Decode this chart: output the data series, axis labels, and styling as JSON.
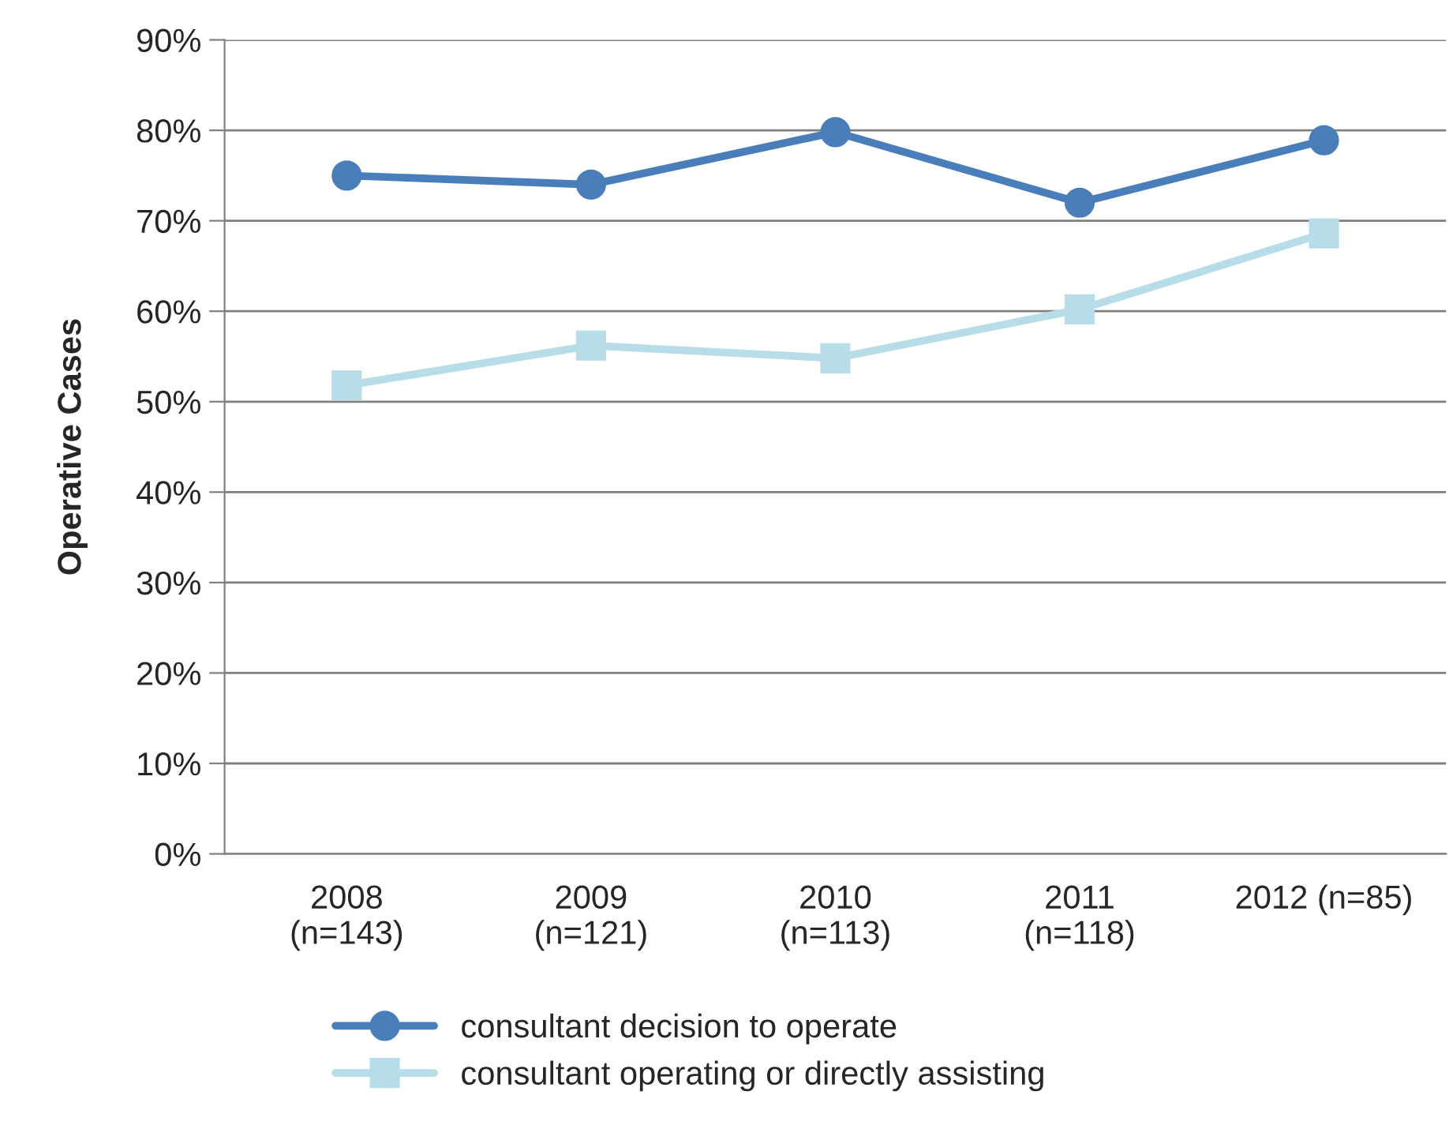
{
  "chart_data": {
    "type": "line",
    "ylabel": "Operative Cases",
    "categories": [
      "2008\n(n=143)",
      "2009\n(n=121)",
      "2010\n(n=113)",
      "2011\n(n=118)",
      "2012 (n=85)"
    ],
    "series": [
      {
        "name": "consultant decision to operate",
        "color": "#4a7ebb",
        "marker": "circle",
        "values": [
          75,
          74,
          79.8,
          72,
          78.9
        ]
      },
      {
        "name": "consultant operating or directly assisting",
        "color": "#b7dde8",
        "marker": "square",
        "values": [
          51.8,
          56.2,
          54.8,
          60.2,
          68.6
        ]
      }
    ],
    "ylim": [
      0,
      90
    ],
    "yticks": [
      {
        "value": 0,
        "label": "0%"
      },
      {
        "value": 10,
        "label": "10%"
      },
      {
        "value": 20,
        "label": "20%"
      },
      {
        "value": 30,
        "label": "30%"
      },
      {
        "value": 40,
        "label": "40%"
      },
      {
        "value": 50,
        "label": "50%"
      },
      {
        "value": 60,
        "label": "60%"
      },
      {
        "value": 70,
        "label": "70%"
      },
      {
        "value": 80,
        "label": "80%"
      },
      {
        "value": 90,
        "label": "90%"
      }
    ],
    "grid": "y",
    "legend": "bottom",
    "line_style": "solid"
  }
}
